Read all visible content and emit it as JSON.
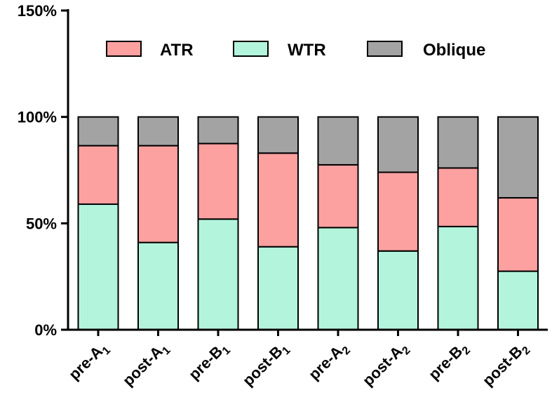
{
  "chart_data": {
    "type": "bar",
    "stacked": true,
    "title": "",
    "xlabel": "",
    "ylabel": "",
    "ylim": [
      0,
      150
    ],
    "yticks": [
      {
        "value": 0,
        "label": "0%"
      },
      {
        "value": 50,
        "label": "50%"
      },
      {
        "value": 100,
        "label": "100%"
      },
      {
        "value": 150,
        "label": "150%"
      }
    ],
    "categories": [
      {
        "base": "pre-A",
        "sub": "1"
      },
      {
        "base": "post-A",
        "sub": "1"
      },
      {
        "base": "pre-B",
        "sub": "1"
      },
      {
        "base": "post-B",
        "sub": "1"
      },
      {
        "base": "pre-A",
        "sub": "2"
      },
      {
        "base": "post-A",
        "sub": "2"
      },
      {
        "base": "pre-B",
        "sub": "2"
      },
      {
        "base": "post-B",
        "sub": "2"
      }
    ],
    "series": [
      {
        "name": "WTR",
        "color": "#b3f5dc",
        "values": [
          59,
          41,
          52,
          39,
          48,
          37,
          48.5,
          27.5
        ]
      },
      {
        "name": "ATR",
        "color": "#fca0a0",
        "values": [
          27.5,
          45.5,
          35.5,
          44,
          29.5,
          37,
          27.5,
          34.5
        ]
      },
      {
        "name": "Oblique",
        "color": "#a3a3a3",
        "values": [
          13.5,
          13.5,
          12.5,
          17,
          22.5,
          26,
          24,
          38
        ]
      }
    ],
    "legend": {
      "placement": "top",
      "order": [
        "ATR",
        "WTR",
        "Oblique"
      ]
    }
  }
}
